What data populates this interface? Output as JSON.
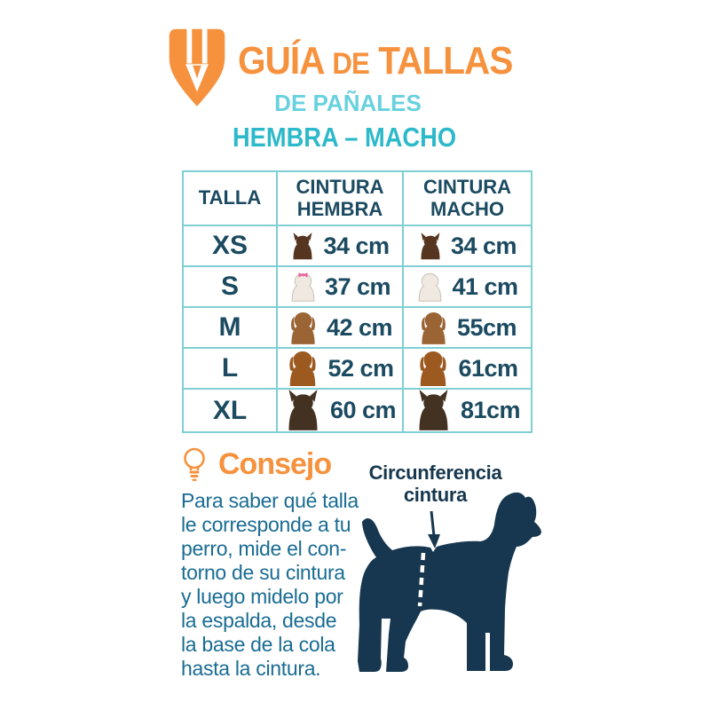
{
  "header": {
    "title": {
      "word1": "GUÍA",
      "word2": "DE",
      "word3": "TALLAS"
    },
    "subtitle": "DE PAÑALES",
    "gender_line": "HEMBRA – MACHO"
  },
  "table": {
    "headers": {
      "talla": "TALLA",
      "hembra": "CINTURA\nHEMBRA",
      "macho": "CINTURA\nMACHO"
    },
    "rows": [
      {
        "talla": "XS",
        "hembra": "34 cm",
        "macho": "34 cm",
        "breed": "chihuahua",
        "variant": "pointy",
        "color": "#55351F",
        "size": 28,
        "bow": false
      },
      {
        "talla": "S",
        "hembra": "37 cm",
        "macho": "41 cm",
        "breed": "maltese",
        "variant": "fluffy",
        "color": "#EFE9E1",
        "size": 31,
        "bow": true,
        "outline": "#C9C1B6"
      },
      {
        "talla": "M",
        "hembra": "42 cm",
        "macho": "55cm",
        "breed": "beagle",
        "variant": "floppy",
        "color": "#9A6434",
        "size": 35,
        "bow": false
      },
      {
        "talla": "L",
        "hembra": "52 cm",
        "macho": "61cm",
        "breed": "cocker-spaniel",
        "variant": "floppy",
        "color": "#9C5A20",
        "size": 38,
        "bow": false
      },
      {
        "talla": "XL",
        "hembra": "60 cm",
        "macho": "81cm",
        "breed": "german-shepherd",
        "variant": "pointy",
        "color": "#433122",
        "size": 43,
        "bow": false
      }
    ]
  },
  "tip": {
    "heading": "Consejo",
    "body": "Para saber qué talla\nle corresponde a tu\nperro, mide el con-\ntorno de su cintura\ny luego midelo por\nla espalda, desde\nla base de la cola\nhasta la cintura."
  },
  "figure": {
    "label": "Circunferencia\ncintura"
  },
  "colors": {
    "orange": "#F6923E",
    "cyan": "#68D1DE",
    "teal": "#2CB9CA",
    "table_text_navy": "#1B4A61",
    "paragraph_blue": "#1A6C93",
    "label_navy": "#17374E",
    "dog_silhouette_navy": "#16374F",
    "table_border_teal": "#7FCFD3",
    "bow_pink": "#EE5FA4"
  }
}
